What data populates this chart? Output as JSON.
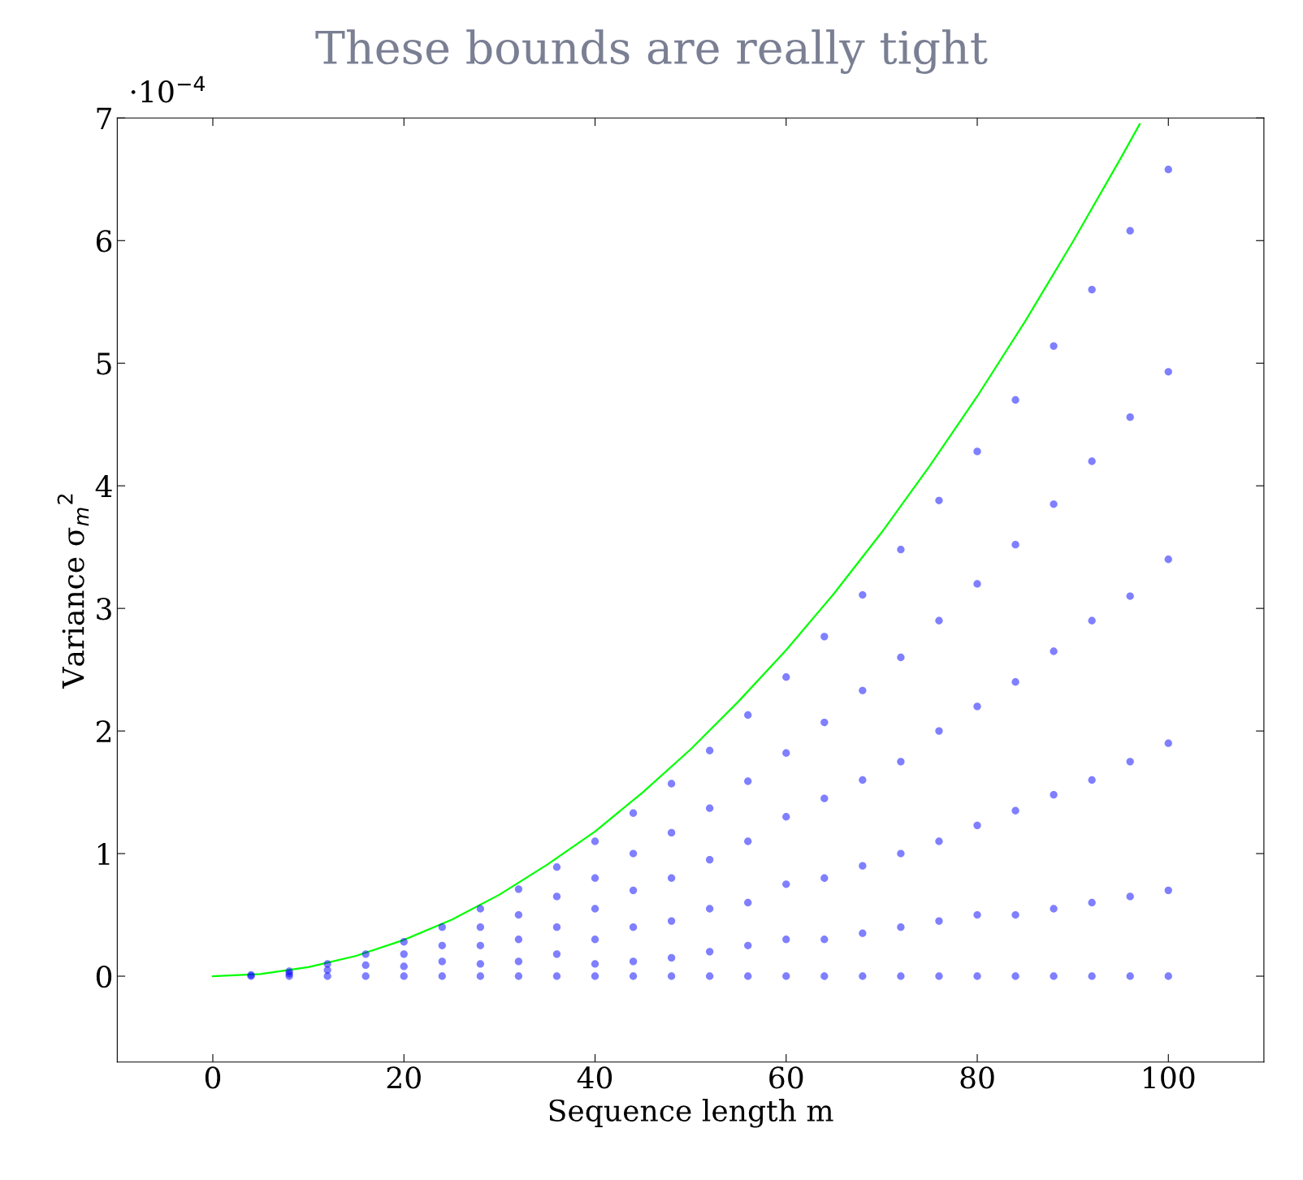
{
  "chart_data": {
    "type": "scatter",
    "title": "These bounds are really tight",
    "xlabel": "Sequence length m",
    "ylabel": "Variance σ$_{m}$$^{2}$",
    "annotations": [
      "·10$^{−4}$"
    ],
    "xlim": [
      -10,
      110
    ],
    "ylim": [
      -0.7,
      7
    ],
    "xticks": [
      0,
      20,
      40,
      60,
      80,
      100
    ],
    "yticks": [
      0,
      1,
      2,
      3,
      4,
      5,
      6,
      7
    ],
    "grid": false,
    "legend": false,
    "series": [
      {
        "color": "#0000ff",
        "marker": "circle",
        "x": [
          4,
          4,
          8,
          8,
          8,
          12,
          12,
          12,
          16,
          16,
          16,
          20,
          20,
          20,
          20,
          24,
          24,
          24,
          24,
          28,
          28,
          28,
          28,
          28,
          32,
          32,
          32,
          32,
          32,
          36,
          36,
          36,
          36,
          36,
          40,
          40,
          40,
          40,
          40,
          40,
          44,
          44,
          44,
          44,
          44,
          44,
          48,
          48,
          48,
          48,
          48,
          48,
          52,
          52,
          52,
          52,
          52,
          52,
          56,
          56,
          56,
          56,
          56,
          56,
          60,
          60,
          60,
          60,
          60,
          60,
          64,
          64,
          64,
          64,
          64,
          64,
          68,
          68,
          68,
          68,
          68,
          68,
          72,
          72,
          72,
          72,
          72,
          72,
          76,
          76,
          76,
          76,
          76,
          76,
          80,
          80,
          80,
          80,
          80,
          80,
          84,
          84,
          84,
          84,
          84,
          84,
          88,
          88,
          88,
          88,
          88,
          88,
          92,
          92,
          92,
          92,
          92,
          92,
          96,
          96,
          96,
          96,
          96,
          96,
          100,
          100,
          100,
          100,
          100,
          100
        ],
        "values": [
          0.01,
          0,
          0.04,
          0.02,
          0,
          0.1,
          0.05,
          0,
          0.18,
          0.09,
          0,
          0.28,
          0.18,
          0.08,
          0,
          0.4,
          0.25,
          0.12,
          0,
          0.55,
          0.4,
          0.25,
          0.1,
          0,
          0.71,
          0.5,
          0.3,
          0.12,
          0,
          0.89,
          0.65,
          0.4,
          0.18,
          0,
          1.1,
          0.8,
          0.55,
          0.3,
          0.1,
          0,
          1.33,
          1.0,
          0.7,
          0.4,
          0.12,
          0,
          1.57,
          1.17,
          0.8,
          0.45,
          0.15,
          0,
          1.84,
          1.37,
          0.95,
          0.55,
          0.2,
          0,
          2.13,
          1.59,
          1.1,
          0.6,
          0.25,
          0,
          2.44,
          1.82,
          1.3,
          0.75,
          0.3,
          0,
          2.77,
          2.07,
          1.45,
          0.8,
          0.3,
          0,
          3.11,
          2.33,
          1.6,
          0.9,
          0.35,
          0,
          3.48,
          2.6,
          1.75,
          1.0,
          0.4,
          0,
          3.88,
          2.9,
          2.0,
          1.1,
          0.45,
          0,
          4.28,
          3.2,
          2.2,
          1.23,
          0.5,
          0,
          4.7,
          3.52,
          2.4,
          1.35,
          0.5,
          0,
          5.14,
          3.85,
          2.65,
          1.48,
          0.55,
          0,
          5.6,
          4.2,
          2.9,
          1.6,
          0.6,
          0,
          6.08,
          4.56,
          3.1,
          1.75,
          0.65,
          0,
          6.58,
          4.93,
          3.4,
          1.9,
          0.7,
          0
        ]
      },
      {
        "type": "line",
        "color": "#00ff00",
        "marker": "none",
        "line_style": "solid",
        "x": [
          0,
          5,
          10,
          15,
          20,
          25,
          30,
          35,
          40,
          45,
          50,
          55,
          60,
          65,
          70,
          75,
          80,
          85,
          90,
          95,
          97
        ],
        "values": [
          0,
          0.018,
          0.074,
          0.166,
          0.296,
          0.46,
          0.665,
          0.91,
          1.18,
          1.5,
          1.85,
          2.24,
          2.66,
          3.12,
          3.62,
          4.16,
          4.73,
          5.34,
          5.99,
          6.67,
          6.95
        ]
      }
    ]
  }
}
